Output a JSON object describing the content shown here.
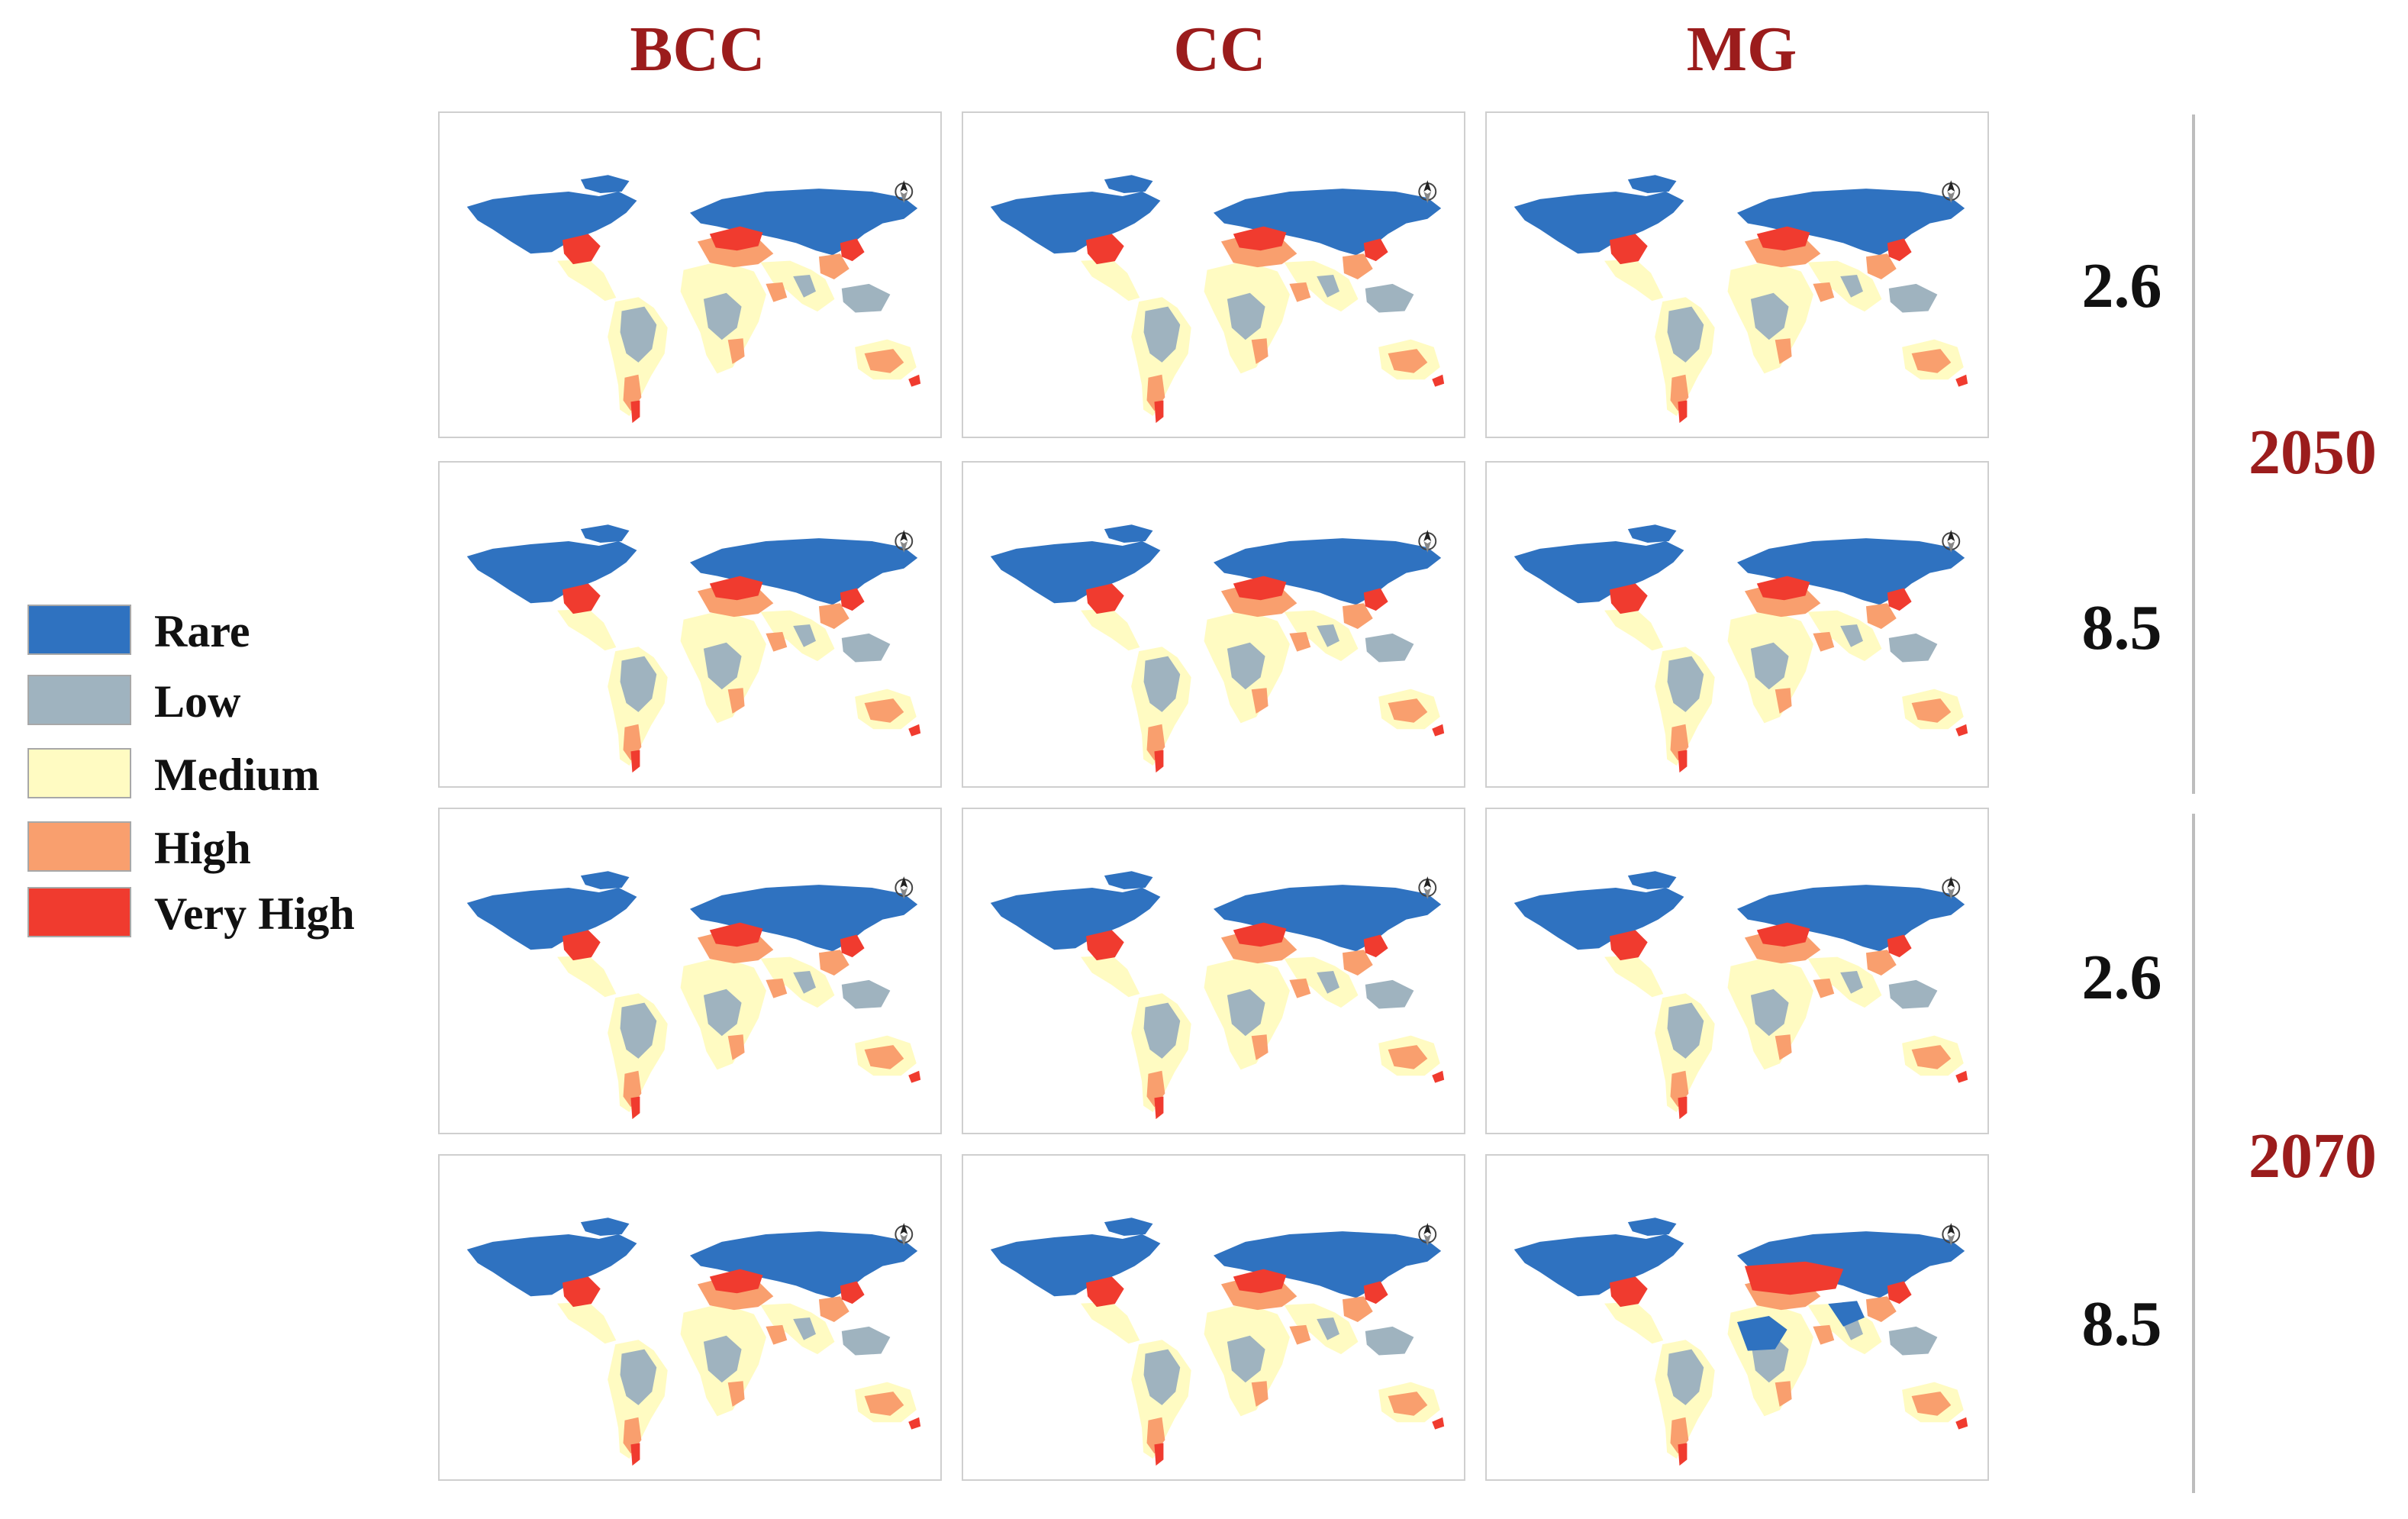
{
  "columns": [
    "BCC",
    "CC",
    "MG"
  ],
  "legend": {
    "title": "",
    "items": [
      {
        "label": "Rare",
        "color": "#2f72c0"
      },
      {
        "label": "Low",
        "color": "#9fb3bf"
      },
      {
        "label": "Medium",
        "color": "#fffbc2"
      },
      {
        "label": "High",
        "color": "#f99f6e"
      },
      {
        "label": "Very High",
        "color": "#f03b2f"
      }
    ]
  },
  "rows": [
    {
      "scenario": "2.6",
      "year": "2050"
    },
    {
      "scenario": "8.5",
      "year": "2050"
    },
    {
      "scenario": "2.6",
      "year": "2070"
    },
    {
      "scenario": "8.5",
      "year": "2070"
    }
  ],
  "years": [
    "2050",
    "2070"
  ],
  "map_icon": "north-arrow-icon",
  "palette": {
    "header_red": "#9b1c1c",
    "rare": "#2f72c0",
    "low": "#9fb3bf",
    "medium": "#fffbc2",
    "high": "#f99f6e",
    "very_high": "#f03b2f"
  }
}
